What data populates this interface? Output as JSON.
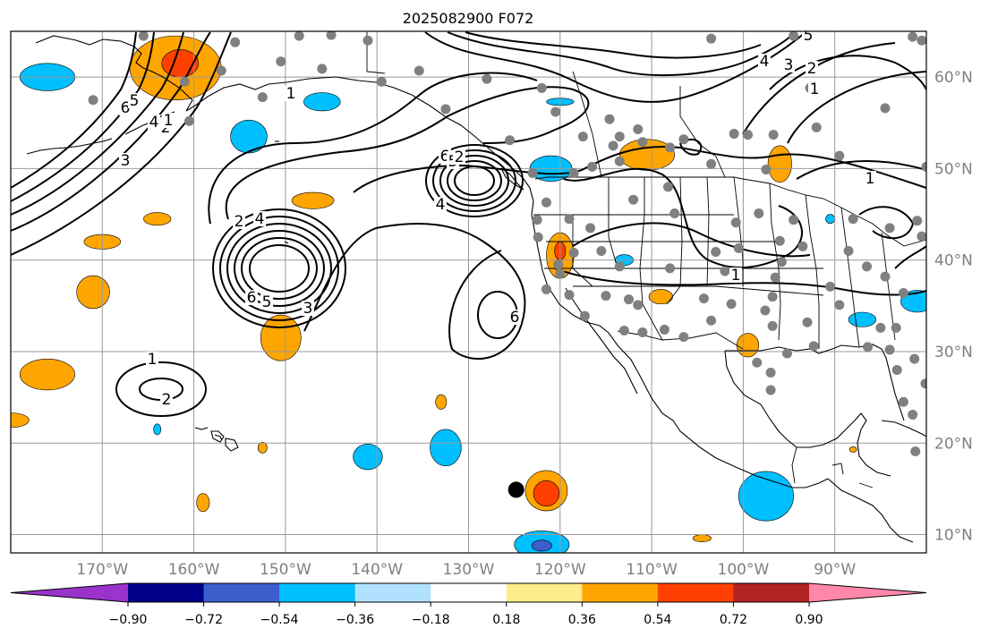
{
  "title": "2025082900 F072",
  "map": {
    "projection": "PlateCarree",
    "lon_range": [
      -180,
      -80
    ],
    "lat_range": [
      8,
      65
    ],
    "gridline_color": "#999999",
    "land_outline_color": "#000000",
    "lon_ticks": [
      {
        "lon": -170,
        "label": "170°W"
      },
      {
        "lon": -160,
        "label": "160°W"
      },
      {
        "lon": -150,
        "label": "150°W"
      },
      {
        "lon": -140,
        "label": "140°W"
      },
      {
        "lon": -130,
        "label": "130°W"
      },
      {
        "lon": -120,
        "label": "120°W"
      },
      {
        "lon": -110,
        "label": "110°W"
      },
      {
        "lon": -100,
        "label": "100°W"
      },
      {
        "lon": -90,
        "label": "90°W"
      }
    ],
    "lat_ticks": [
      {
        "lat": 60,
        "label": "60°N"
      },
      {
        "lat": 50,
        "label": "50°N"
      },
      {
        "lat": 40,
        "label": "40°N"
      },
      {
        "lat": 30,
        "label": "30°N"
      },
      {
        "lat": 20,
        "label": "20°N"
      },
      {
        "lat": 10,
        "label": "10°N"
      }
    ]
  },
  "colorbar": {
    "colors": [
      "#9933cc",
      "#00008b",
      "#3a5fcd",
      "#00bfff",
      "#b0e2ff",
      "#ffffff",
      "#ffec8b",
      "#ffa500",
      "#ff4000",
      "#b22222",
      "#ff88aa"
    ],
    "tick_labels": [
      "−0.90",
      "−0.72",
      "−0.54",
      "−0.36",
      "−0.18",
      "0.18",
      "0.36",
      "0.54",
      "0.72",
      "0.90"
    ],
    "extend": "both"
  },
  "contour_labels": [
    "6",
    "5",
    "4",
    "3",
    "2",
    "1",
    "1",
    "6",
    "5",
    "4",
    "2",
    "4",
    "6",
    "5",
    "3",
    "2",
    "1",
    "2",
    "6",
    "5",
    "4",
    "3",
    "2",
    "1",
    "1",
    "1"
  ],
  "anomaly_blobs": [
    {
      "lon": -162,
      "lat": 61,
      "rx": 5,
      "ry": 3.5,
      "level": "orange"
    },
    {
      "lon": -161.5,
      "lat": 61.5,
      "rx": 2,
      "ry": 1.5,
      "level": "red"
    },
    {
      "lon": -176,
      "lat": 60,
      "rx": 3,
      "ry": 1.5,
      "level": "blue"
    },
    {
      "lon": -146,
      "lat": 57.3,
      "rx": 2,
      "ry": 1,
      "level": "blue"
    },
    {
      "lon": -154,
      "lat": 53.5,
      "rx": 2,
      "ry": 1.8,
      "level": "blue"
    },
    {
      "lon": -120,
      "lat": 57.3,
      "rx": 1.5,
      "ry": 0.4,
      "level": "blue"
    },
    {
      "lon": -147,
      "lat": 46.5,
      "rx": 2.3,
      "ry": 0.9,
      "level": "orange"
    },
    {
      "lon": -164,
      "lat": 44.5,
      "rx": 1.5,
      "ry": 0.7,
      "level": "orange"
    },
    {
      "lon": -170,
      "lat": 42,
      "rx": 2,
      "ry": 0.8,
      "level": "orange"
    },
    {
      "lon": -171,
      "lat": 36.5,
      "rx": 1.8,
      "ry": 1.8,
      "level": "orange"
    },
    {
      "lon": -150.5,
      "lat": 31.5,
      "rx": 2.2,
      "ry": 2.5,
      "level": "orange"
    },
    {
      "lon": -176,
      "lat": 27.5,
      "rx": 3,
      "ry": 1.7,
      "level": "orange"
    },
    {
      "lon": -180,
      "lat": 22.5,
      "rx": 2,
      "ry": 0.8,
      "level": "orange"
    },
    {
      "lon": -133,
      "lat": 24.5,
      "rx": 0.6,
      "ry": 0.8,
      "level": "orange"
    },
    {
      "lon": -152.5,
      "lat": 19.5,
      "rx": 0.5,
      "ry": 0.6,
      "level": "orange"
    },
    {
      "lon": -159,
      "lat": 13.5,
      "rx": 0.7,
      "ry": 1,
      "level": "orange"
    },
    {
      "lon": -164,
      "lat": 21.5,
      "rx": 0.4,
      "ry": 0.6,
      "level": "blue"
    },
    {
      "lon": -141,
      "lat": 18.5,
      "rx": 1.6,
      "ry": 1.4,
      "level": "blue"
    },
    {
      "lon": -132.5,
      "lat": 19.5,
      "rx": 1.7,
      "ry": 2,
      "level": "blue"
    },
    {
      "lon": -121.5,
      "lat": 14.8,
      "rx": 2.3,
      "ry": 2.2,
      "level": "orange"
    },
    {
      "lon": -121.5,
      "lat": 14.5,
      "rx": 1.4,
      "ry": 1.4,
      "level": "red"
    },
    {
      "lon": -122,
      "lat": 8.9,
      "rx": 3,
      "ry": 1.5,
      "level": "blue"
    },
    {
      "lon": -122,
      "lat": 8.8,
      "rx": 1.1,
      "ry": 0.6,
      "level": "darkblue"
    },
    {
      "lon": -121,
      "lat": 50,
      "rx": 2.3,
      "ry": 1.4,
      "level": "blue"
    },
    {
      "lon": -120,
      "lat": 40.5,
      "rx": 1.5,
      "ry": 2.5,
      "level": "orange"
    },
    {
      "lon": -120,
      "lat": 41,
      "rx": 0.6,
      "ry": 1,
      "level": "red"
    },
    {
      "lon": -113,
      "lat": 40,
      "rx": 1,
      "ry": 0.6,
      "level": "blue"
    },
    {
      "lon": -110.5,
      "lat": 51.5,
      "rx": 3,
      "ry": 1.7,
      "level": "orange"
    },
    {
      "lon": -96,
      "lat": 50.5,
      "rx": 1.3,
      "ry": 2,
      "level": "orange"
    },
    {
      "lon": -109,
      "lat": 36,
      "rx": 1.3,
      "ry": 0.8,
      "level": "orange"
    },
    {
      "lon": -99.5,
      "lat": 30.7,
      "rx": 1.2,
      "ry": 1.3,
      "level": "orange"
    },
    {
      "lon": -97.5,
      "lat": 14.2,
      "rx": 3,
      "ry": 2.7,
      "level": "blue"
    },
    {
      "lon": -104.5,
      "lat": 9.6,
      "rx": 1,
      "ry": 0.4,
      "level": "orange"
    },
    {
      "lon": -87,
      "lat": 33.5,
      "rx": 1.5,
      "ry": 0.8,
      "level": "blue"
    },
    {
      "lon": -81,
      "lat": 35.5,
      "rx": 1.8,
      "ry": 1.2,
      "level": "blue"
    },
    {
      "lon": -90.5,
      "lat": 44.5,
      "rx": 0.5,
      "ry": 0.5,
      "level": "blue"
    },
    {
      "lon": -88,
      "lat": 19.3,
      "rx": 0.4,
      "ry": 0.3,
      "level": "orange"
    }
  ],
  "stations": [
    [
      -165.5,
      64.5
    ],
    [
      -155.5,
      63.8
    ],
    [
      -148.5,
      64.5
    ],
    [
      -145,
      64.6
    ],
    [
      -141,
      64
    ],
    [
      -150.5,
      61.7
    ],
    [
      -157,
      60.7
    ],
    [
      -161,
      59.5
    ],
    [
      -171,
      57.5
    ],
    [
      -160.5,
      55.2
    ],
    [
      -152.5,
      57.8
    ],
    [
      -146,
      60.9
    ],
    [
      -139.5,
      59.5
    ],
    [
      -135.4,
      60.7
    ],
    [
      -132.5,
      56.5
    ],
    [
      -128,
      59.8
    ],
    [
      -122,
      58.8
    ],
    [
      -120.5,
      56.2
    ],
    [
      -117.5,
      53.5
    ],
    [
      -125.5,
      53.1
    ],
    [
      -123,
      49.5
    ],
    [
      -118.5,
      49.5
    ],
    [
      -116.5,
      50.2
    ],
    [
      -113.5,
      53.5
    ],
    [
      -114.2,
      52.5
    ],
    [
      -113.5,
      50.8
    ],
    [
      -114.6,
      55.4
    ],
    [
      -111.5,
      54.3
    ],
    [
      -111,
      52.9
    ],
    [
      -108,
      52.3
    ],
    [
      -106.5,
      53.2
    ],
    [
      -103.5,
      50.5
    ],
    [
      -101,
      53.8
    ],
    [
      -99.5,
      53.7
    ],
    [
      -96.7,
      53.7
    ],
    [
      -97.5,
      49.9
    ],
    [
      -103.5,
      64.2
    ],
    [
      -94.5,
      64.5
    ],
    [
      -92,
      54.5
    ],
    [
      -89.5,
      51.4
    ],
    [
      -80,
      50.2
    ],
    [
      -81.5,
      64.4
    ],
    [
      -80.5,
      64
    ],
    [
      -84.5,
      56.6
    ],
    [
      -92.7,
      58.8
    ],
    [
      -121.5,
      46.3
    ],
    [
      -122.5,
      44.4
    ],
    [
      -119,
      44.5
    ],
    [
      -116.7,
      43.5
    ],
    [
      -112,
      46.6
    ],
    [
      -107.5,
      45.1
    ],
    [
      -108.2,
      48
    ],
    [
      -115.5,
      41
    ],
    [
      -113.5,
      39.3
    ],
    [
      -122.4,
      42.5
    ],
    [
      -120.2,
      39.5
    ],
    [
      -120,
      38.5
    ],
    [
      -121.5,
      36.8
    ],
    [
      -119,
      36.2
    ],
    [
      -118.5,
      40.8
    ],
    [
      -117.3,
      33.9
    ],
    [
      -112.5,
      35.7
    ],
    [
      -111.5,
      35.1
    ],
    [
      -113,
      32.3
    ],
    [
      -111,
      32.1
    ],
    [
      -115,
      36.1
    ],
    [
      -108,
      39.1
    ],
    [
      -108.6,
      32.4
    ],
    [
      -103,
      40.9
    ],
    [
      -104.3,
      35.8
    ],
    [
      -103.5,
      33.4
    ],
    [
      -106.5,
      31.6
    ],
    [
      -98.3,
      45.1
    ],
    [
      -100.8,
      44.1
    ],
    [
      -102,
      38.8
    ],
    [
      -100.5,
      41.3
    ],
    [
      -96,
      42.1
    ],
    [
      -96.5,
      38.1
    ],
    [
      -94.5,
      44.4
    ],
    [
      -93.5,
      41.5
    ],
    [
      -95.8,
      39.8
    ],
    [
      -97.6,
      34.5
    ],
    [
      -101.3,
      35.2
    ],
    [
      -96.8,
      36
    ],
    [
      -96.8,
      32.8
    ],
    [
      -97,
      27.7
    ],
    [
      -95.2,
      29.8
    ],
    [
      -98.5,
      28.8
    ],
    [
      -97,
      25.8
    ],
    [
      -93,
      33.2
    ],
    [
      -92.3,
      30.6
    ],
    [
      -90.5,
      37.1
    ],
    [
      -88.5,
      41
    ],
    [
      -89.5,
      35.1
    ],
    [
      -86.5,
      39.3
    ],
    [
      -84,
      43.5
    ],
    [
      -84.5,
      38.2
    ],
    [
      -82.5,
      36.4
    ],
    [
      -85,
      32.6
    ],
    [
      -86.4,
      30.5
    ],
    [
      -84,
      30.2
    ],
    [
      -83.3,
      32.6
    ],
    [
      -88,
      44.5
    ],
    [
      -81,
      44.3
    ],
    [
      -83.2,
      28
    ],
    [
      -82.5,
      24.5
    ],
    [
      -81.3,
      29.2
    ],
    [
      -81.5,
      23.1
    ],
    [
      -81.2,
      19.1
    ],
    [
      -80.1,
      26.5
    ],
    [
      -79.5,
      31.3
    ],
    [
      -78.5,
      34.5
    ],
    [
      -76.5,
      38.9
    ],
    [
      -80.5,
      42.6
    ],
    [
      -79.3,
      40.4
    ],
    [
      -77.9,
      45.5
    ]
  ],
  "tc_marker": {
    "lon": -124.8,
    "lat": 14.9
  }
}
